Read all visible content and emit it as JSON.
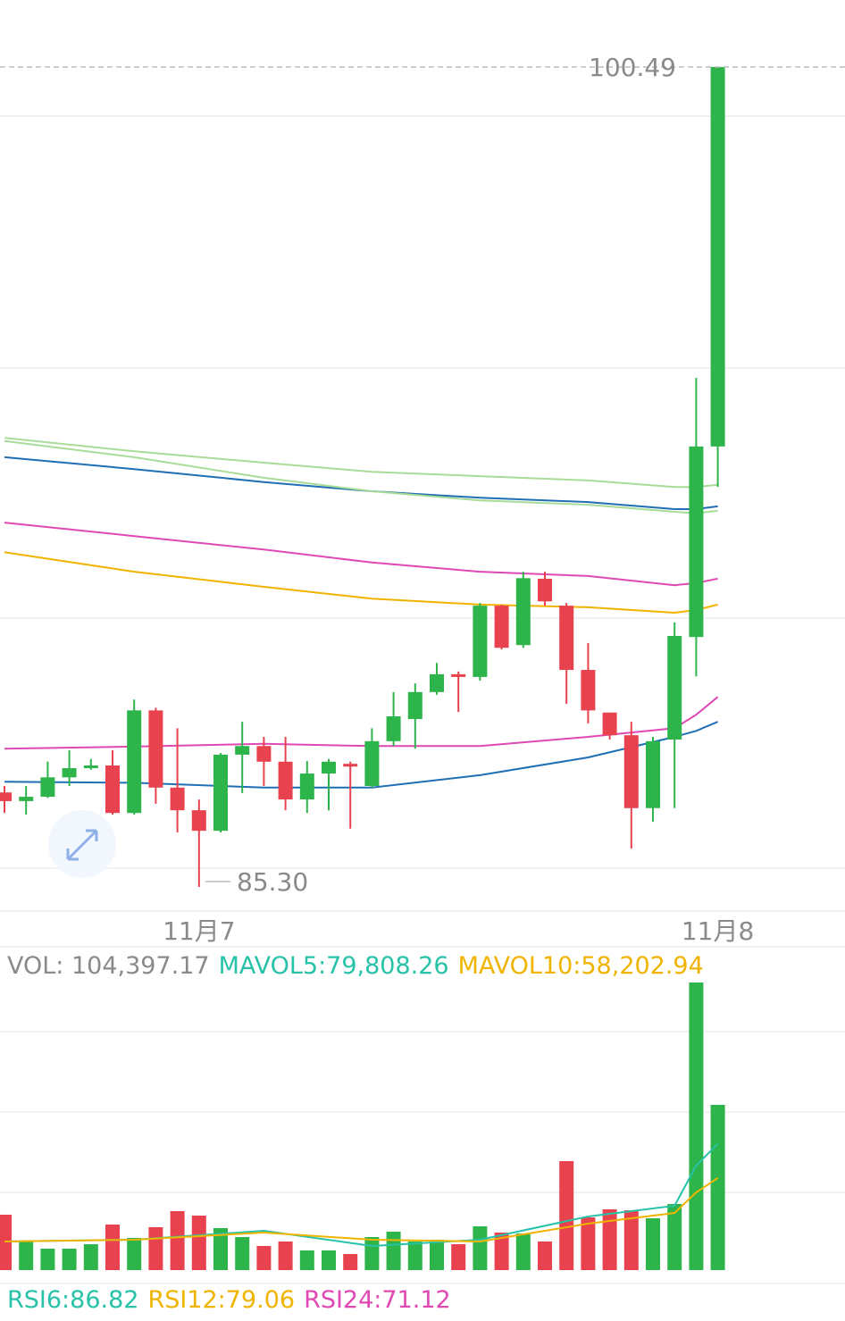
{
  "chart_data": {
    "type": "candlestick",
    "categories": [
      null,
      null,
      null,
      null,
      null,
      null,
      null,
      null,
      null,
      "11月7",
      null,
      null,
      null,
      null,
      null,
      null,
      null,
      null,
      null,
      null,
      null,
      null,
      null,
      null,
      null,
      null,
      null,
      null,
      null,
      null,
      null,
      null,
      null,
      "11月8"
    ],
    "candles": {
      "open": [
        87.05,
        86.89,
        86.97,
        87.33,
        87.5,
        87.55,
        86.67,
        88.57,
        87.14,
        86.72,
        86.34,
        87.75,
        87.91,
        87.62,
        86.92,
        87.4,
        87.58,
        87.17,
        88.0,
        88.41,
        88.91,
        89.24,
        89.19,
        90.51,
        89.78,
        91.01,
        90.51,
        89.32,
        88.53,
        88.11,
        86.76,
        88.03,
        89.93,
        93.46
      ],
      "close": [
        86.89,
        86.97,
        87.33,
        87.5,
        87.55,
        86.67,
        88.57,
        87.14,
        86.72,
        86.34,
        87.75,
        87.91,
        87.62,
        86.92,
        87.4,
        87.62,
        87.53,
        88.0,
        88.46,
        88.91,
        89.24,
        89.19,
        90.51,
        89.73,
        91.02,
        90.59,
        89.32,
        88.57,
        88.11,
        86.76,
        88.0,
        89.95,
        93.46,
        100.49
      ],
      "high": [
        87.17,
        87.17,
        87.62,
        87.83,
        87.67,
        87.83,
        88.77,
        88.62,
        88.24,
        86.92,
        87.78,
        88.36,
        88.08,
        88.08,
        87.63,
        87.67,
        87.62,
        88.24,
        88.91,
        89.07,
        89.45,
        89.29,
        90.56,
        90.53,
        91.14,
        91.14,
        90.56,
        89.82,
        88.53,
        88.36,
        88.08,
        90.2,
        94.73,
        100.49
      ],
      "low": [
        86.67,
        86.64,
        86.95,
        87.17,
        87.47,
        86.64,
        86.64,
        86.84,
        86.31,
        85.3,
        86.31,
        87.04,
        87.17,
        86.72,
        86.67,
        86.72,
        86.38,
        87.14,
        87.91,
        87.86,
        88.86,
        88.54,
        89.12,
        89.7,
        89.73,
        90.51,
        88.69,
        88.33,
        88.03,
        86.01,
        86.51,
        86.76,
        89.2,
        92.71
      ]
    },
    "colors": {
      "up": "#2db44b",
      "down": "#e8424f"
    },
    "annotations": [
      {
        "value": 100.49,
        "label": "100.49"
      },
      {
        "value": 85.3,
        "label": "85.30"
      }
    ],
    "ma_index": [
      0,
      6,
      12,
      17,
      22,
      27,
      31,
      32,
      33
    ],
    "moving_averages": [
      {
        "color": "#e048b4",
        "values": [
          87.86,
          87.9,
          87.95,
          87.91,
          87.91,
          88.08,
          88.24,
          88.49,
          88.82
        ]
      },
      {
        "color": "#1f6fb5",
        "values": [
          87.25,
          87.23,
          87.14,
          87.14,
          87.37,
          87.7,
          88.08,
          88.19,
          88.36
        ]
      },
      {
        "color": "#f0b400",
        "values": [
          91.5,
          91.14,
          90.86,
          90.64,
          90.53,
          90.48,
          90.38,
          90.43,
          90.53
        ]
      },
      {
        "color": "#e048b4",
        "values": [
          92.05,
          91.8,
          91.55,
          91.31,
          91.14,
          91.06,
          90.89,
          90.93,
          91.01
        ]
      },
      {
        "color": "#1f6fb5",
        "values": [
          93.26,
          93.04,
          92.8,
          92.63,
          92.51,
          92.43,
          92.3,
          92.3,
          92.35
        ]
      },
      {
        "color": "#a8dc98",
        "values": [
          93.62,
          93.37,
          93.16,
          92.99,
          92.91,
          92.83,
          92.71,
          92.71,
          92.75
        ]
      },
      {
        "color": "#a8dc98",
        "values": [
          93.56,
          93.26,
          92.88,
          92.63,
          92.46,
          92.38,
          92.25,
          92.22,
          92.27
        ]
      }
    ],
    "volume": {
      "legend": [
        {
          "text": "VOL: 104,397.17",
          "color": "#8a8a8a"
        },
        {
          "text": "MAVOL5:79,808.26",
          "color": "#27c2a8"
        },
        {
          "text": "MAVOL10:58,202.94",
          "color": "#f0b400"
        }
      ],
      "values": [
        35000,
        18060,
        13540,
        13540,
        16360,
        28780,
        20310,
        27090,
        37240,
        34420,
        26520,
        20880,
        15240,
        18060,
        12410,
        12410,
        10160,
        20880,
        24260,
        18060,
        19190,
        16360,
        27650,
        23700,
        23140,
        18060,
        68840,
        33290,
        38370,
        37810,
        32730,
        41760,
        181700,
        104397.17
      ],
      "ma_series": [
        {
          "color": "#27c2a8",
          "values": [
            18060,
            19190,
            24830,
            15240,
            19190,
            33860,
            40630,
            66020,
            79808.26
          ]
        },
        {
          "color": "#f0b400",
          "values": [
            18060,
            19190,
            23700,
            19190,
            18060,
            29340,
            36120,
            49090,
            58202.94
          ]
        }
      ]
    },
    "rsi_legend": [
      {
        "text": "RSI6:86.82",
        "color": "#27c2a8"
      },
      {
        "text": "RSI12:79.06",
        "color": "#f0b400"
      },
      {
        "text": "RSI24:71.12",
        "color": "#e048b4"
      }
    ]
  }
}
